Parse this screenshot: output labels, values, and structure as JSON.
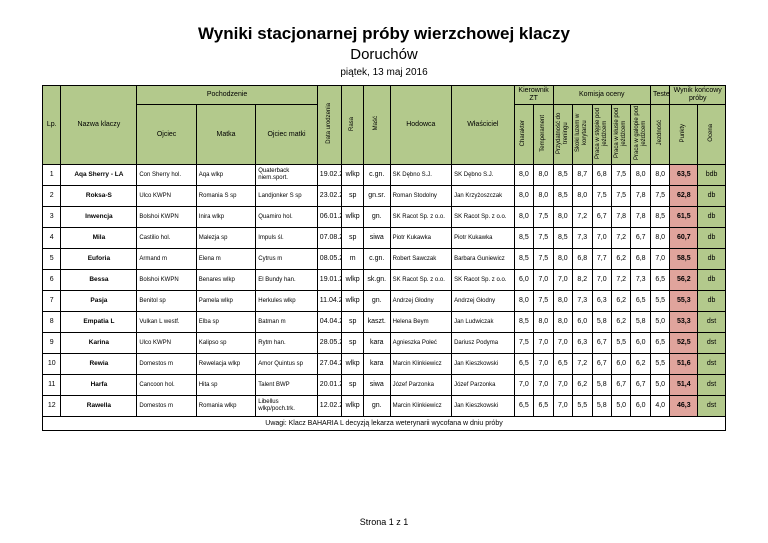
{
  "page": {
    "title": "Wyniki stacjonarnej próby wierzchowej klaczy",
    "subtitle": "Doruchów",
    "date_line": "piątek, 13 maj 2016",
    "footer": "Strona 1 z 1"
  },
  "colors": {
    "header_green": "#b3c98c",
    "punkty_pink": "#e0a49c"
  },
  "table": {
    "headers": {
      "lp": "Lp.",
      "nazwa": "Nazwa klaczy",
      "pochodzenie": "Pochodzenie",
      "ojciec": "Ojciec",
      "matka": "Matka",
      "ojciec_matki": "Ojciec matki",
      "data_urodzenia": "Data urodzenia",
      "rasa": "Rasa",
      "masc": "Maść",
      "hodowca": "Hodowca",
      "wlasciciel": "Właściciel",
      "kierownik_zt": "Kierownik ZT",
      "charakter": "Charakter",
      "temperament": "Temperament",
      "komisja_oceny": "Komisja oceny",
      "przydatnosc": "Przydatność do treningu",
      "skoki": "Skoki luzem w korytarzu",
      "step": "Praca w stępie pod jeźdźcem",
      "klus": "Praca w kłusie pod jeźdźcem",
      "galop": "Praca w galopie pod jeźdźcem",
      "tester": "Tester",
      "jezdnosc": "Jezdność",
      "wynik_koncowy": "Wynik końcowy próby",
      "punkty": "Punkty",
      "ocena": "Ocena"
    },
    "rows": [
      [
        "1",
        "Aqa Sherry - LA",
        "Con Sherry hol.",
        "Aqa wlkp",
        "Quaterback niem.sport.",
        "19.02.2013",
        "wlkp",
        "c.gn.",
        "SK Dębno S.J.",
        "SK Dębno S.J.",
        "8,0",
        "8,0",
        "8,5",
        "8,7",
        "6,8",
        "7,5",
        "8,0",
        "8,0",
        "63,5",
        "bdb"
      ],
      [
        "2",
        "Roksa-S",
        "Ulco KWPN",
        "Romania S sp",
        "Landjonker S sp",
        "23.02.2013",
        "sp",
        "gn.sr.",
        "Roman Stodolny",
        "Jan Krzyżoszczak",
        "8,0",
        "8,0",
        "8,5",
        "8,0",
        "7,5",
        "7,5",
        "7,8",
        "7,5",
        "62,8",
        "db"
      ],
      [
        "3",
        "Inwencja",
        "Bolshoi KWPN",
        "Inira wlkp",
        "Quamiro hol.",
        "06.01.2013",
        "wlkp",
        "gn.",
        "SK Racot Sp. z o.o.",
        "SK Racot Sp. z o.o.",
        "8,0",
        "7,5",
        "8,0",
        "7,2",
        "6,7",
        "7,8",
        "7,8",
        "8,5",
        "61,5",
        "db"
      ],
      [
        "4",
        "Mila",
        "Castilio hol.",
        "Malezja sp",
        "Impuls śl.",
        "07.08.2011",
        "sp",
        "siwa",
        "Piotr Kukawka",
        "Piotr Kukawka",
        "8,5",
        "7,5",
        "8,5",
        "7,3",
        "7,0",
        "7,2",
        "6,7",
        "8,0",
        "60,7",
        "db"
      ],
      [
        "5",
        "Euforia",
        "Armand m",
        "Elena m",
        "Cytrus m",
        "08.05.2009",
        "m",
        "c.gn.",
        "Robert Sawczak",
        "Barbara Guniewicz",
        "8,5",
        "7,5",
        "8,0",
        "6,8",
        "7,7",
        "6,2",
        "6,8",
        "7,0",
        "58,5",
        "db"
      ],
      [
        "6",
        "Bessa",
        "Bolshoi KWPN",
        "Benares wlkp",
        "El Bundy han.",
        "19.01.2013",
        "wlkp",
        "sk.gn.",
        "SK Racot Sp. z o.o.",
        "SK Racot Sp. z o.o.",
        "6,0",
        "7,0",
        "7,0",
        "8,2",
        "7,0",
        "7,2",
        "7,3",
        "6,5",
        "56,2",
        "db"
      ],
      [
        "7",
        "Pasja",
        "Benitol sp",
        "Pamela wlkp",
        "Herkules wlkp",
        "11.04.2013",
        "wlkp",
        "gn.",
        "Andrzej Głodny",
        "Andrzej Głodny",
        "8,0",
        "7,5",
        "8,0",
        "7,3",
        "6,3",
        "6,2",
        "6,5",
        "5,5",
        "55,3",
        "db"
      ],
      [
        "8",
        "Empatia L",
        "Vulkan L westf.",
        "Elba sp",
        "Batman m",
        "04.04.2013",
        "sp",
        "kaszt.",
        "Helena Beym",
        "Jan Ludwiczak",
        "8,5",
        "8,0",
        "8,0",
        "6,0",
        "5,8",
        "6,2",
        "5,8",
        "5,0",
        "53,3",
        "dst"
      ],
      [
        "9",
        "Karina",
        "Ulco KWPN",
        "Kalipso sp",
        "Rytm han.",
        "28.05.2011",
        "sp",
        "kara",
        "Agnieszka Połeć",
        "Dariusz Podyma",
        "7,5",
        "7,0",
        "7,0",
        "6,3",
        "6,7",
        "5,5",
        "6,0",
        "6,5",
        "52,5",
        "dst"
      ],
      [
        "10",
        "Rewia",
        "Domestos m",
        "Rewelacja wlkp",
        "Amor Quintus sp",
        "27.04.2006",
        "wlkp",
        "kara",
        "Marcin Klinkiewicz",
        "Jan Kieszkowski",
        "6,5",
        "7,0",
        "6,5",
        "7,2",
        "6,7",
        "6,0",
        "6,2",
        "5,5",
        "51,6",
        "dst"
      ],
      [
        "11",
        "Harfa",
        "Cancoon hol.",
        "Hita sp",
        "Talent BWP",
        "20.01.2011",
        "sp",
        "siwa",
        "Józef Parzonka",
        "Józef Parzonka",
        "7,0",
        "7,0",
        "7,0",
        "6,2",
        "5,8",
        "6,7",
        "6,7",
        "5,0",
        "51,4",
        "dst"
      ],
      [
        "12",
        "Rawella",
        "Domestos m",
        "Romania wlkp",
        "Libellus wlkp/poch.trk.",
        "12.02.2006",
        "wlkp",
        "gn.",
        "Marcin Klinkiewicz",
        "Jan Kieszkowski",
        "6,5",
        "6,5",
        "7,0",
        "5,5",
        "5,8",
        "5,0",
        "6,0",
        "4,0",
        "46,3",
        "dst"
      ]
    ],
    "note": "Uwagi: Klacz BAHARIA L decyzją lekarza weterynarii wycofana w dniu próby"
  }
}
